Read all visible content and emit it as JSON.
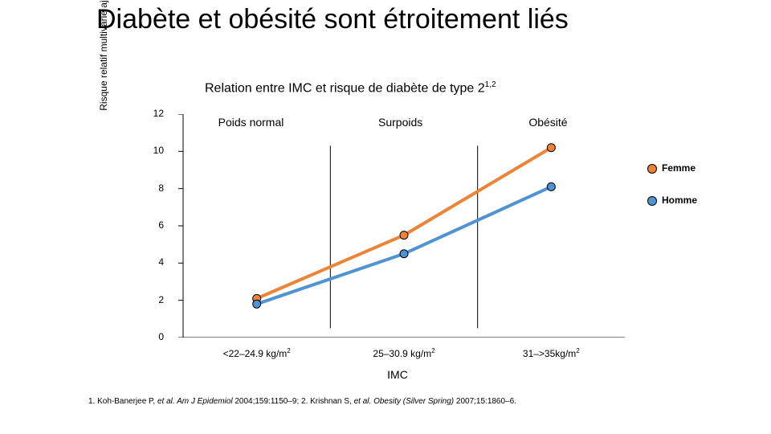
{
  "title": "Diabète et obésité sont étroitement liés",
  "subtitle_plain": "Relation entre IMC et risque de diabète de type 2",
  "subtitle_sup": "1,2",
  "yaxis_label": "Risque relatif multivarié ajusté de diabète",
  "xaxis_label": "IMC",
  "chart": {
    "type": "line",
    "background_color": "#ffffff",
    "yaxis": {
      "min": 0,
      "max": 12,
      "ticks": [
        0,
        2,
        4,
        6,
        8,
        10,
        12
      ],
      "tick_fontsize": 12,
      "label_fontsize": 12
    },
    "xaxis": {
      "categories": [
        {
          "label_plain": "<22–24.9 kg/m",
          "label_sup": "2",
          "top_label": "Poids normal"
        },
        {
          "label_plain": "25–30.9 kg/m",
          "label_sup": "2",
          "top_label": "Surpoids"
        },
        {
          "label_plain": "31–>35kg/m",
          "label_sup": "2",
          "top_label": "Obésité"
        }
      ],
      "tick_fontsize": 12,
      "toplabel_fontsize": 14
    },
    "series": [
      {
        "name": "Femme",
        "color": "#ee8336",
        "marker_border": "#000000",
        "marker_size": 10,
        "line_width": 4,
        "values": [
          2.1,
          5.5,
          10.2
        ]
      },
      {
        "name": "Homme",
        "color": "#4f93d2",
        "marker_border": "#000000",
        "marker_size": 10,
        "line_width": 4,
        "values": [
          1.8,
          4.5,
          8.1
        ]
      }
    ],
    "category_divider_color": "#000000",
    "tickmark_color": "#000000",
    "legend": {
      "items": [
        "Femme",
        "Homme"
      ],
      "fontsize": 12,
      "marker_size": 10
    }
  },
  "footnotes": {
    "ref1_prefix": "1. Koh-Banerjee P, ",
    "ref1_etal": "et al. Am J Epidemiol",
    "ref1_suffix": " 2004;159:1150–9; 2. Krishnan S, ",
    "ref2_etal": "et al. Obesity (Silver Spring)",
    "ref2_suffix": " 2007;15:1860–6."
  }
}
